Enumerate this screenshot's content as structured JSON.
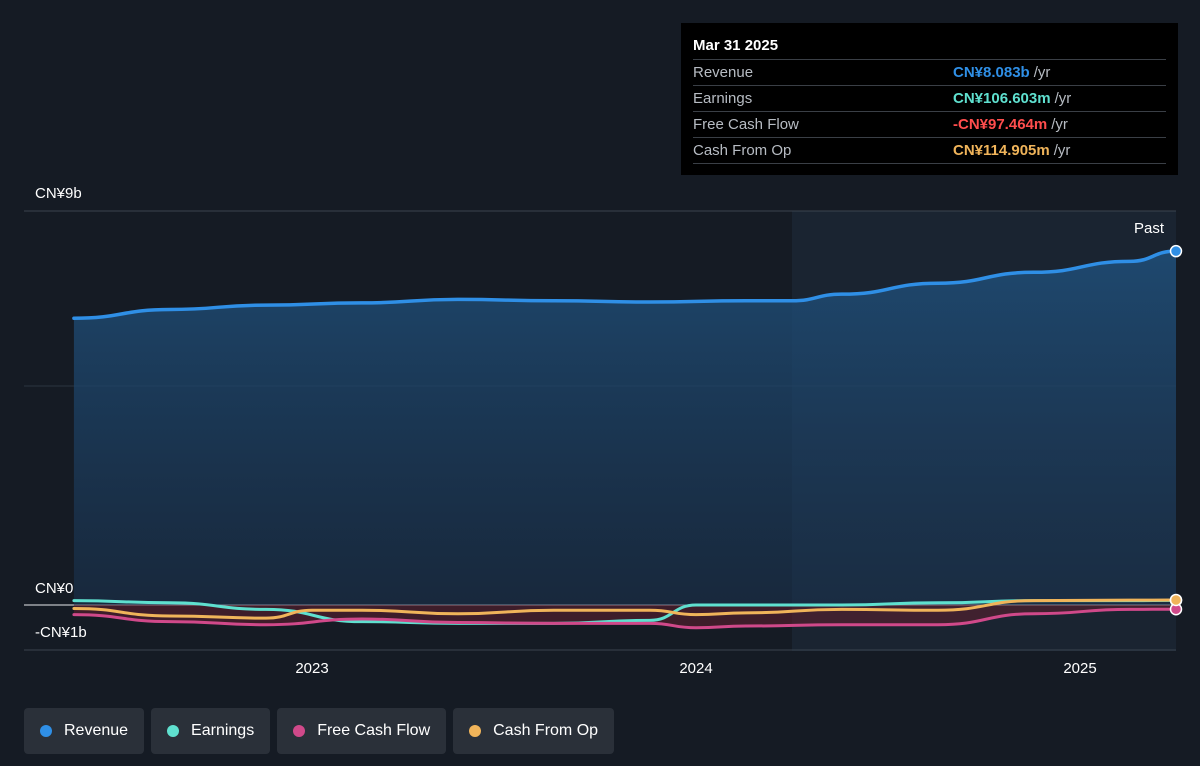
{
  "tooltip": {
    "date": "Mar 31 2025",
    "rows": [
      {
        "label": "Revenue",
        "value": "CN¥8.083b",
        "unit": "/yr",
        "color": "#2f8fe6"
      },
      {
        "label": "Earnings",
        "value": "CN¥106.603m",
        "unit": "/yr",
        "color": "#5fe0cf"
      },
      {
        "label": "Free Cash Flow",
        "value": "-CN¥97.464m",
        "unit": "/yr",
        "color": "#ff4d4d"
      },
      {
        "label": "Cash From Op",
        "value": "CN¥114.905m",
        "unit": "/yr",
        "color": "#f0b45a"
      }
    ]
  },
  "past_label": "Past",
  "legend": [
    {
      "label": "Revenue",
      "color": "#2f8fe6"
    },
    {
      "label": "Earnings",
      "color": "#5fe0cf"
    },
    {
      "label": "Free Cash Flow",
      "color": "#d0498a"
    },
    {
      "label": "Cash From Op",
      "color": "#f0b45a"
    }
  ],
  "chart_data": {
    "type": "line",
    "title": "",
    "xlabel": "",
    "ylabel": "",
    "y_ticks": [
      "CN¥9b",
      "CN¥0",
      "-CN¥1b"
    ],
    "x_ticks": [
      {
        "label": "2023",
        "x": 2023.0
      },
      {
        "label": "2024",
        "x": 2024.0
      },
      {
        "label": "2025",
        "x": 2025.0
      }
    ],
    "ylim": [
      -1,
      9
    ],
    "xlim": [
      2022.25,
      2025.25
    ],
    "past_start": 2024.25,
    "series": [
      {
        "name": "Revenue",
        "color": "#2f8fe6",
        "fill": true,
        "points": [
          [
            2022.38,
            6.55
          ],
          [
            2022.63,
            6.75
          ],
          [
            2022.88,
            6.85
          ],
          [
            2023.13,
            6.9
          ],
          [
            2023.38,
            6.98
          ],
          [
            2023.63,
            6.95
          ],
          [
            2023.88,
            6.92
          ],
          [
            2024.13,
            6.95
          ],
          [
            2024.25,
            6.95
          ],
          [
            2024.38,
            7.1
          ],
          [
            2024.63,
            7.35
          ],
          [
            2024.88,
            7.6
          ],
          [
            2025.13,
            7.85
          ],
          [
            2025.25,
            8.083
          ]
        ]
      },
      {
        "name": "Earnings",
        "color": "#5fe0cf",
        "fill": false,
        "points": [
          [
            2022.38,
            0.1
          ],
          [
            2022.63,
            0.05
          ],
          [
            2022.88,
            -0.1
          ],
          [
            2023.13,
            -0.38
          ],
          [
            2023.38,
            -0.42
          ],
          [
            2023.63,
            -0.42
          ],
          [
            2023.88,
            -0.35
          ],
          [
            2024.0,
            0.0
          ],
          [
            2024.13,
            0.0
          ],
          [
            2024.38,
            0.0
          ],
          [
            2024.63,
            0.05
          ],
          [
            2024.88,
            0.1
          ],
          [
            2025.13,
            0.1
          ],
          [
            2025.25,
            0.107
          ]
        ]
      },
      {
        "name": "Free Cash Flow",
        "color": "#d0498a",
        "fill": false,
        "points": [
          [
            2022.38,
            -0.22
          ],
          [
            2022.63,
            -0.38
          ],
          [
            2022.88,
            -0.45
          ],
          [
            2023.13,
            -0.32
          ],
          [
            2023.38,
            -0.4
          ],
          [
            2023.63,
            -0.42
          ],
          [
            2023.88,
            -0.42
          ],
          [
            2024.0,
            -0.52
          ],
          [
            2024.13,
            -0.48
          ],
          [
            2024.38,
            -0.45
          ],
          [
            2024.63,
            -0.45
          ],
          [
            2024.88,
            -0.2
          ],
          [
            2025.13,
            -0.1
          ],
          [
            2025.25,
            -0.097
          ]
        ]
      },
      {
        "name": "Cash From Op",
        "color": "#f0b45a",
        "fill": false,
        "points": [
          [
            2022.38,
            -0.08
          ],
          [
            2022.63,
            -0.25
          ],
          [
            2022.88,
            -0.3
          ],
          [
            2023.0,
            -0.12
          ],
          [
            2023.13,
            -0.12
          ],
          [
            2023.38,
            -0.2
          ],
          [
            2023.63,
            -0.12
          ],
          [
            2023.88,
            -0.12
          ],
          [
            2024.0,
            -0.22
          ],
          [
            2024.13,
            -0.18
          ],
          [
            2024.38,
            -0.1
          ],
          [
            2024.63,
            -0.12
          ],
          [
            2024.88,
            0.1
          ],
          [
            2025.13,
            0.11
          ],
          [
            2025.25,
            0.115
          ]
        ]
      }
    ]
  }
}
